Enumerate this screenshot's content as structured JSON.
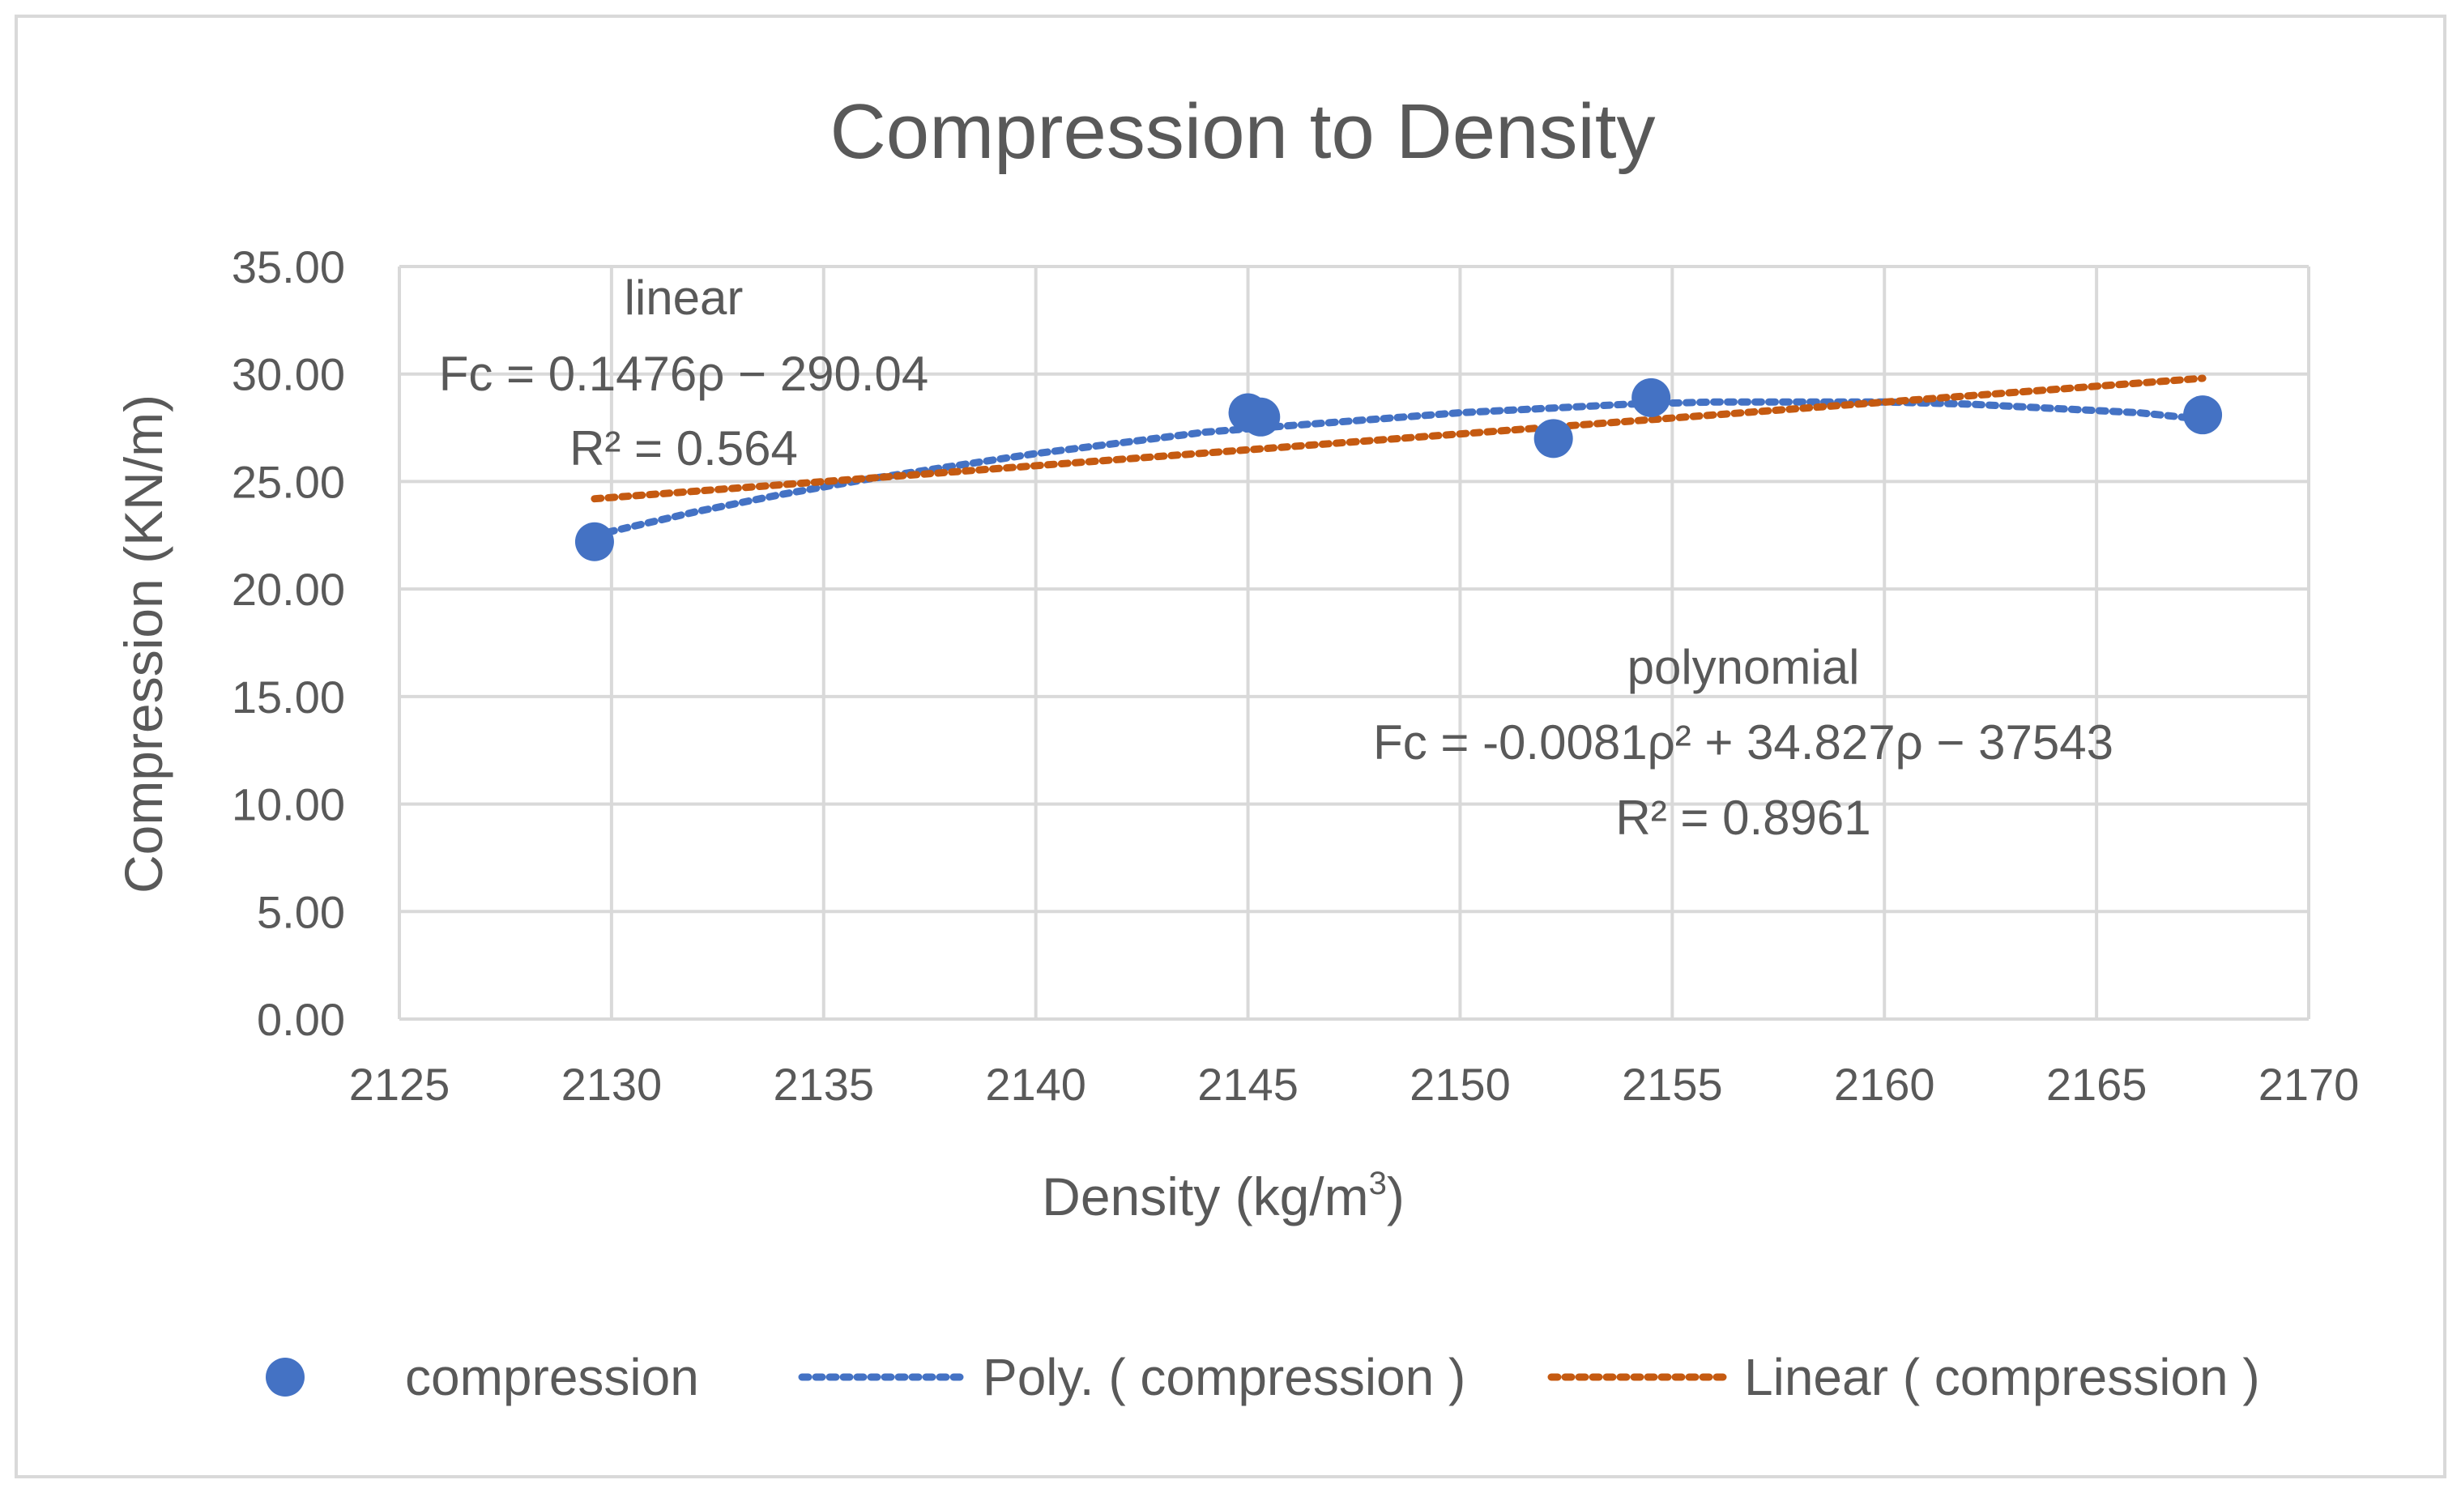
{
  "chart_data": {
    "type": "scatter",
    "title": "Compression to Density",
    "xlabel": "Density (kg/m",
    "xlabel_sup": "3",
    "xlabel_end": ")",
    "ylabel": "Compression (KN/m)",
    "xlim": [
      2125,
      2170
    ],
    "ylim": [
      0,
      35
    ],
    "x_ticks": [
      2125,
      2130,
      2135,
      2140,
      2145,
      2150,
      2155,
      2160,
      2165,
      2170
    ],
    "x_tick_labels": [
      "2125",
      "2130",
      "2135",
      "2140",
      "2145",
      "2150",
      "2155",
      "2160",
      "2165",
      "2170"
    ],
    "y_ticks": [
      0,
      5,
      10,
      15,
      20,
      25,
      30,
      35
    ],
    "y_tick_labels": [
      "0.00",
      "5.00",
      "10.00",
      "15.00",
      "20.00",
      "25.00",
      "30.00",
      "35.00"
    ],
    "grid": true,
    "series": [
      {
        "name": "compression",
        "type": "scatter",
        "color": "#4472C4",
        "points": [
          [
            2129.6,
            22.2
          ],
          [
            2145.0,
            28.2
          ],
          [
            2145.3,
            28.0
          ],
          [
            2152.2,
            27.0
          ],
          [
            2154.5,
            28.9
          ],
          [
            2167.5,
            28.1
          ]
        ]
      }
    ],
    "trendlines": [
      {
        "name": "Poly. ( compression )",
        "type": "polynomial",
        "color": "#4472C4",
        "coefficients": [
          -0.0081,
          34.827,
          -37543
        ],
        "x_range": [
          2129.6,
          2167.5
        ],
        "samples": [
          [
            2129.6,
            22.5
          ],
          [
            2132,
            23.6
          ],
          [
            2134,
            24.4
          ],
          [
            2136,
            25.1
          ],
          [
            2138,
            25.7
          ],
          [
            2140,
            26.3
          ],
          [
            2142,
            26.8
          ],
          [
            2144,
            27.3
          ],
          [
            2146,
            27.6
          ],
          [
            2148,
            27.9
          ],
          [
            2150,
            28.2
          ],
          [
            2152,
            28.4
          ],
          [
            2154,
            28.6
          ],
          [
            2156,
            28.7
          ],
          [
            2158,
            28.7
          ],
          [
            2160,
            28.7
          ],
          [
            2162,
            28.6
          ],
          [
            2164,
            28.4
          ],
          [
            2166,
            28.2
          ],
          [
            2167.5,
            27.9
          ]
        ]
      },
      {
        "name": "Linear ( compression )",
        "type": "linear",
        "color": "#C55A11",
        "coefficients": [
          0.1476,
          -290.04
        ],
        "x_range": [
          2129.6,
          2167.5
        ],
        "samples": [
          [
            2129.6,
            24.2
          ],
          [
            2167.5,
            29.8
          ]
        ]
      }
    ],
    "annotations": [
      {
        "id": "linear",
        "lines": [
          "linear",
          "Fc = 0.1476ρ − 290.04",
          "R² = 0.564"
        ]
      },
      {
        "id": "polynomial",
        "lines": [
          "polynomial",
          "Fc = -0.0081ρ² + 34.827ρ − 37543",
          "R² = 0.8961"
        ]
      }
    ],
    "legend": {
      "position": "bottom",
      "items": [
        "compression",
        "Poly. ( compression )",
        "Linear ( compression )"
      ]
    }
  }
}
